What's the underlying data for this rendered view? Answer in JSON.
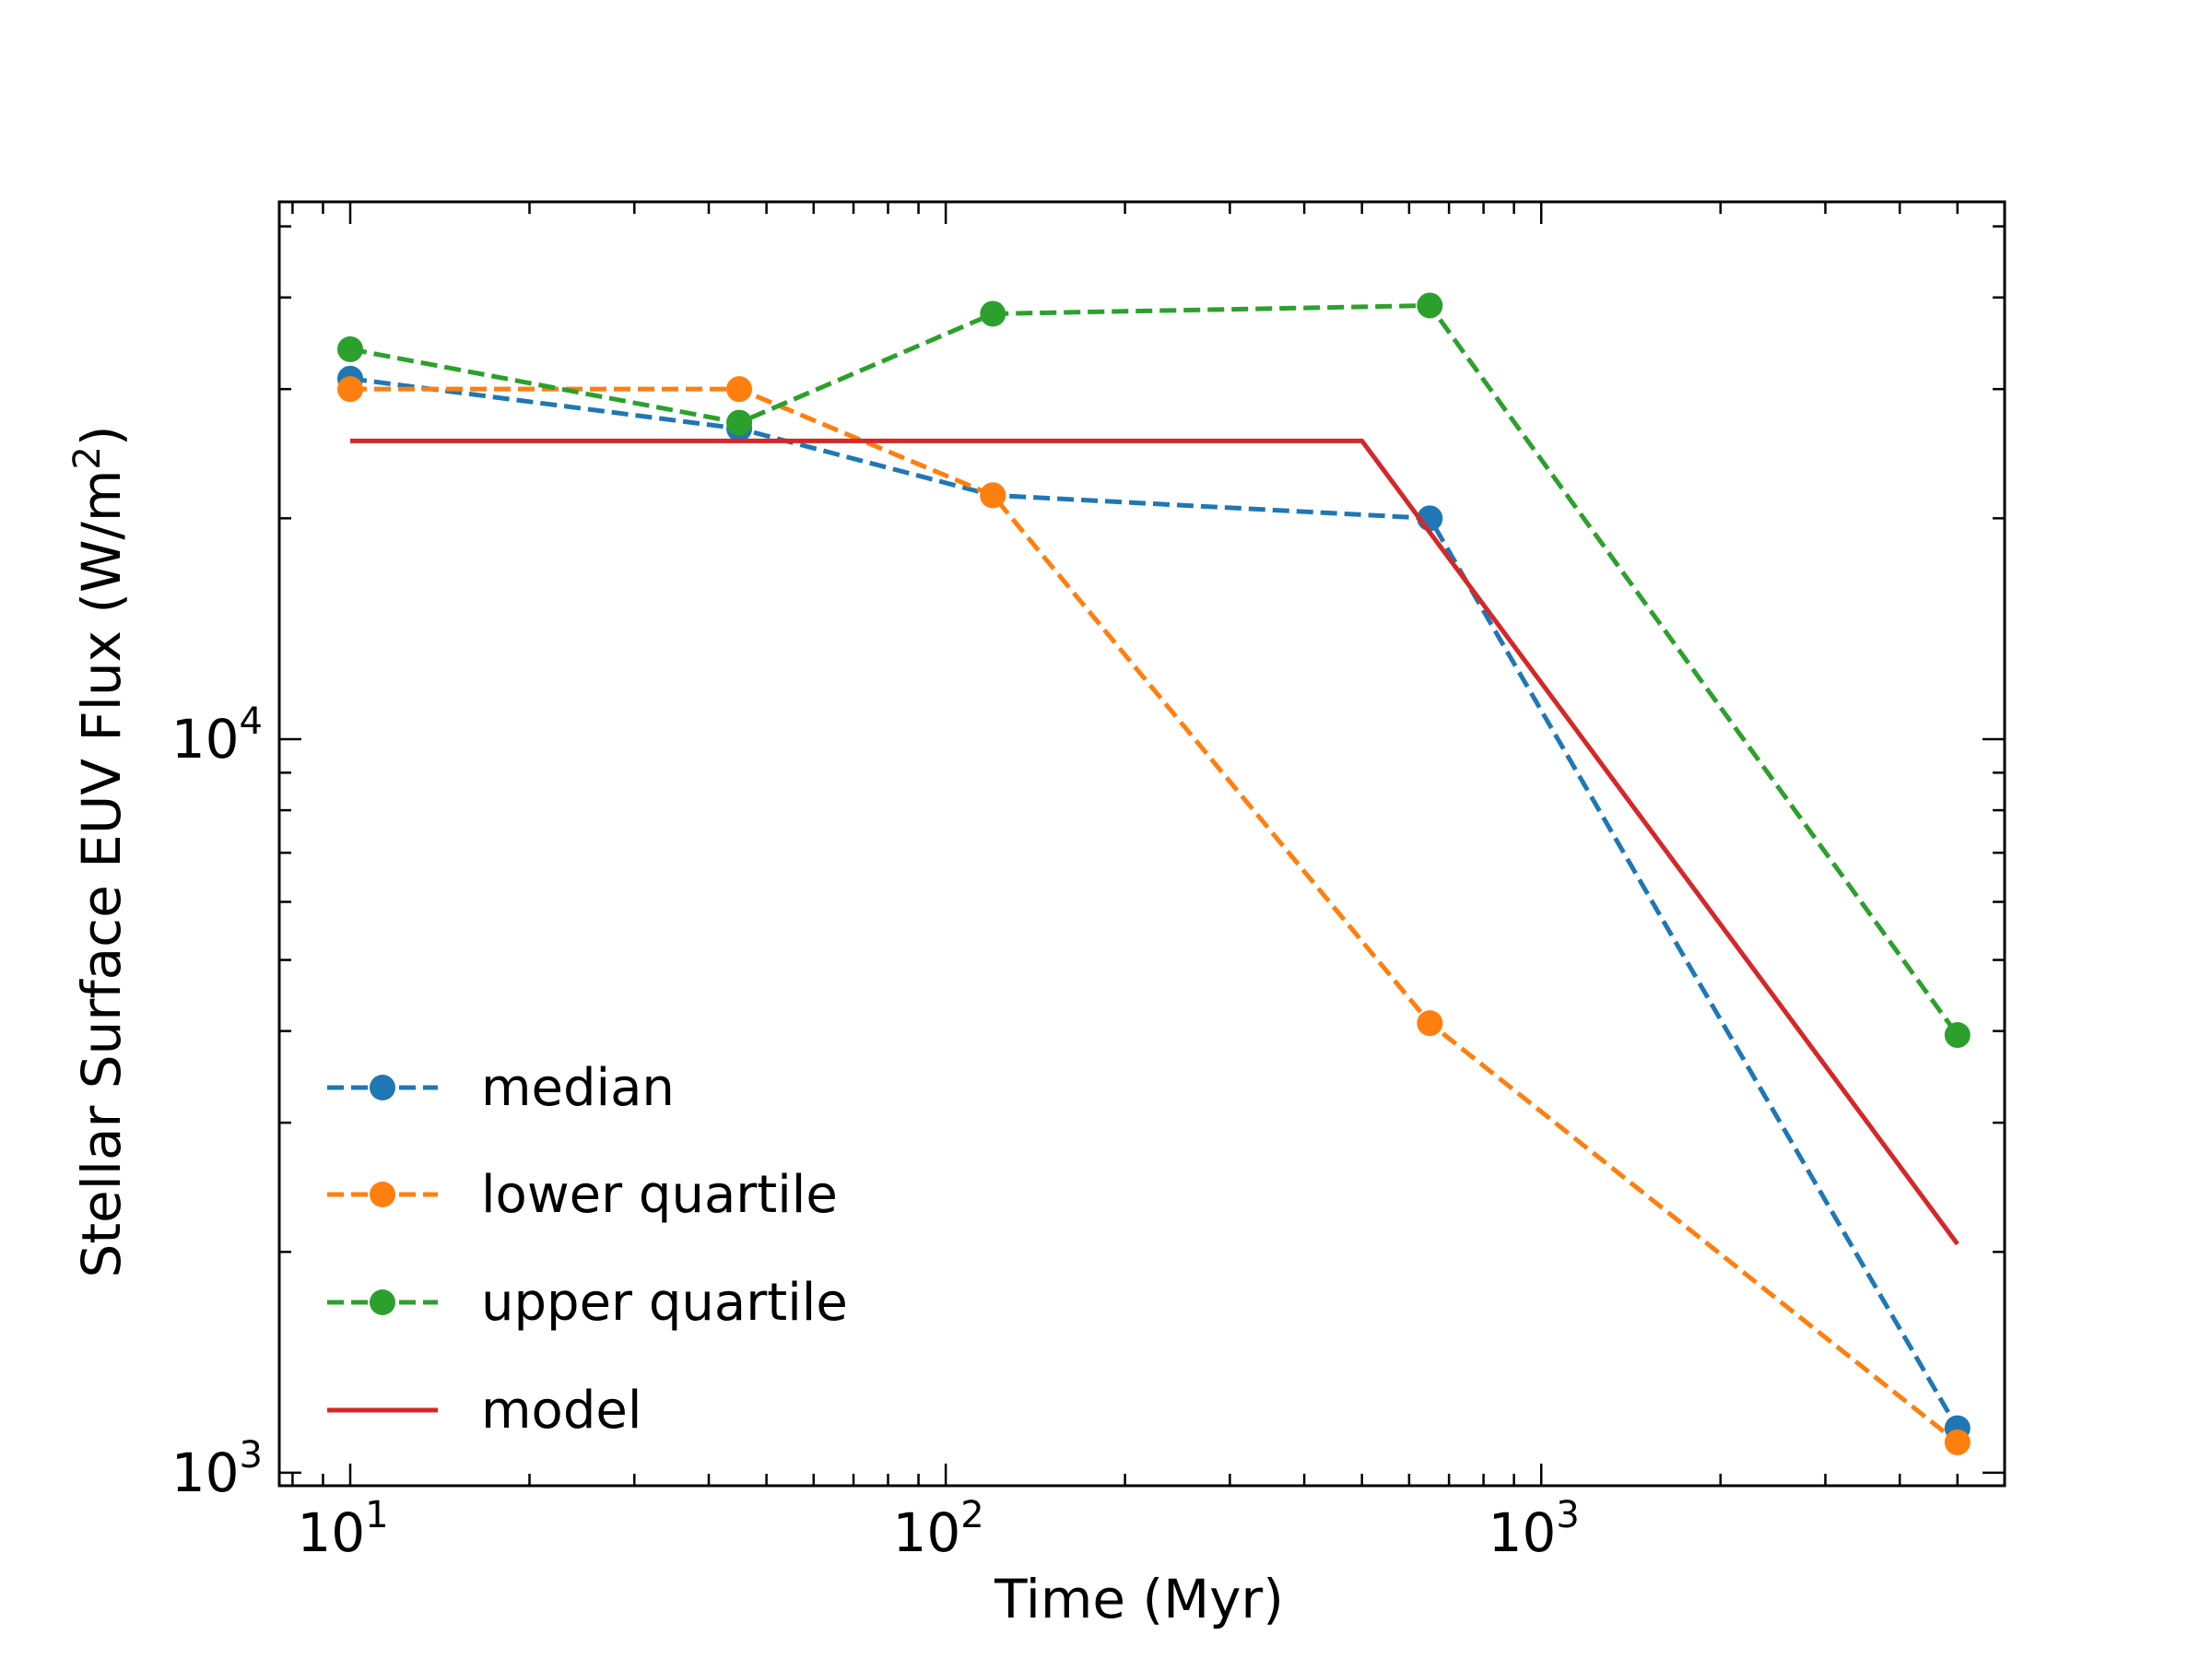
{
  "chart_data": {
    "type": "line",
    "title": "",
    "xlabel": "Time (Myr)",
    "ylabel": "Stellar Surface EUV Flux (W/m",
    "ylabel_superscript": "2",
    "ylabel_suffix": ")",
    "xscale": "log",
    "yscale": "log",
    "xlim": [
      7.6,
      6000
    ],
    "ylim": [
      960,
      54000
    ],
    "x_ticks": [
      {
        "value": 10,
        "base": "10",
        "exp": "1"
      },
      {
        "value": 100,
        "base": "10",
        "exp": "2"
      },
      {
        "value": 1000,
        "base": "10",
        "exp": "3"
      }
    ],
    "y_ticks": [
      {
        "value": 1000,
        "base": "10",
        "exp": "3"
      },
      {
        "value": 10000,
        "base": "10",
        "exp": "4"
      }
    ],
    "legend_position": "lower-left",
    "series": [
      {
        "name": "median",
        "color": "#1f77b4",
        "style": "dashed",
        "marker": "circle",
        "x": [
          10,
          45,
          120,
          650,
          5000
        ],
        "y": [
          31000,
          26500,
          21500,
          20000,
          1150
        ]
      },
      {
        "name": "lower quartile",
        "color": "#ff7f0e",
        "style": "dashed",
        "marker": "circle",
        "x": [
          10,
          45,
          120,
          650,
          5000
        ],
        "y": [
          30000,
          30000,
          21500,
          4100,
          1100
        ]
      },
      {
        "name": "upper quartile",
        "color": "#2ca02c",
        "style": "dashed",
        "marker": "circle",
        "x": [
          10,
          45,
          120,
          650,
          5000
        ],
        "y": [
          34000,
          27000,
          38000,
          39000,
          3950
        ]
      },
      {
        "name": "model",
        "color": "#d62728",
        "style": "solid",
        "marker": "none",
        "x": [
          10,
          500,
          5000
        ],
        "y": [
          25500,
          25500,
          2050
        ]
      }
    ]
  }
}
